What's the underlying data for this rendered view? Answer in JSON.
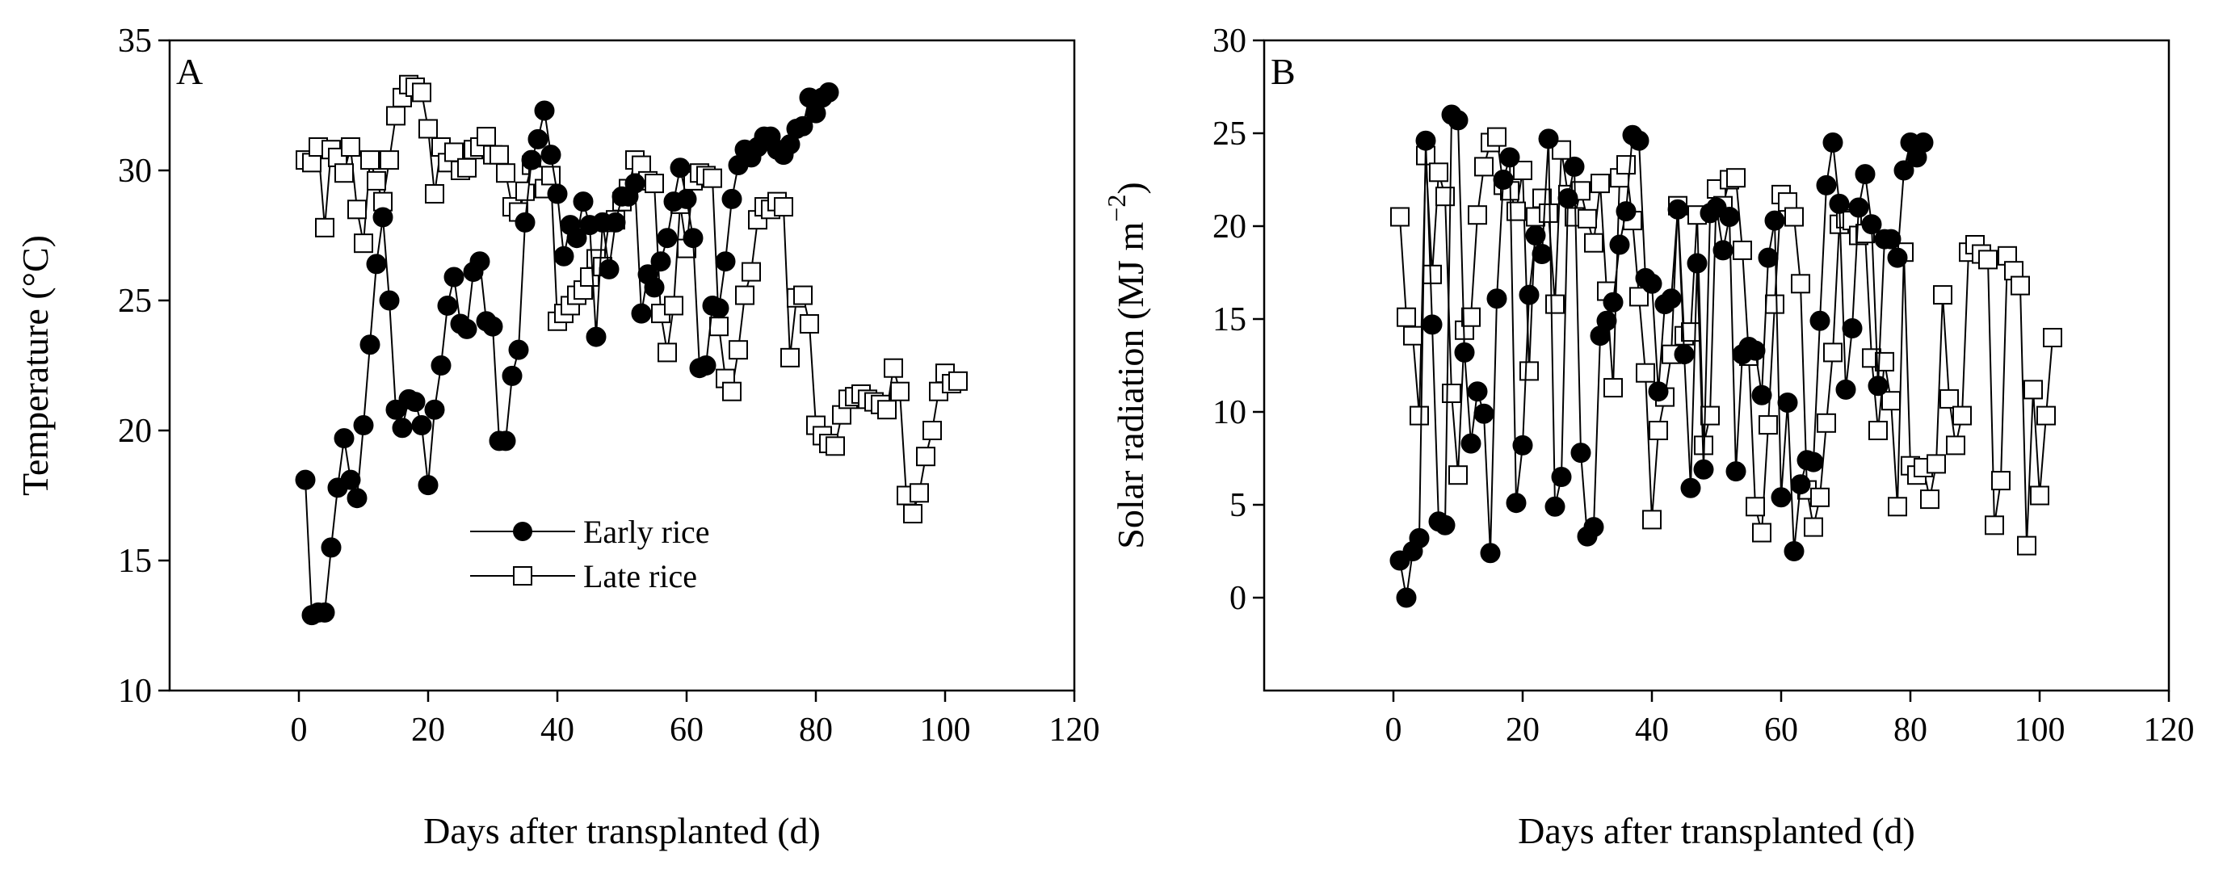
{
  "chart_data": [
    {
      "panel": "A",
      "type": "line",
      "xlabel": "Days after transplanted (d)",
      "ylabel_main": "Temperature (",
      "ylabel_unit": "°C",
      "ylabel_close": ")",
      "xlim": [
        -20,
        120
      ],
      "ylim": [
        10,
        35
      ],
      "xticks": [
        "0",
        "20",
        "40",
        "60",
        "80",
        "100",
        "120"
      ],
      "yticks": [
        "10",
        "15",
        "20",
        "25",
        "30",
        "35"
      ],
      "legend": [
        "Early rice",
        "Late rice"
      ],
      "series": [
        {
          "name": "Early rice",
          "marker": "filled-circle",
          "x": [
            1,
            2,
            3,
            4,
            5,
            6,
            7,
            8,
            9,
            10,
            11,
            12,
            13,
            14,
            15,
            16,
            17,
            18,
            19,
            20,
            21,
            22,
            23,
            24,
            25,
            26,
            27,
            28,
            29,
            30,
            31,
            32,
            33,
            34,
            35,
            36,
            37,
            38,
            39,
            40,
            41,
            42,
            43,
            44,
            45,
            46,
            47,
            48,
            49,
            50,
            51,
            52,
            53,
            54,
            55,
            56,
            57,
            58,
            59,
            60,
            61,
            62,
            63,
            64,
            65,
            66,
            67,
            68,
            69,
            70,
            71,
            72,
            73,
            74,
            75,
            76,
            77,
            78,
            79,
            80,
            81,
            82
          ],
          "y": [
            18.1,
            12.9,
            13.0,
            13.0,
            15.5,
            17.8,
            19.7,
            18.1,
            17.4,
            20.2,
            23.3,
            26.4,
            28.2,
            25.0,
            20.8,
            20.1,
            21.2,
            21.1,
            20.2,
            17.9,
            20.8,
            22.5,
            24.8,
            25.9,
            24.1,
            23.9,
            26.1,
            26.5,
            24.2,
            24.0,
            19.6,
            19.6,
            22.1,
            23.1,
            28.0,
            30.4,
            31.2,
            32.3,
            30.6,
            29.1,
            26.7,
            27.9,
            27.4,
            28.8,
            27.9,
            23.6,
            28.0,
            26.2,
            28.0,
            29.0,
            29.0,
            29.5,
            24.5,
            26.0,
            25.5,
            26.5,
            27.4,
            28.8,
            30.1,
            28.9,
            27.4,
            22.4,
            22.5,
            24.8,
            24.7,
            26.5,
            28.9,
            30.2,
            30.8,
            30.5,
            30.9,
            31.3,
            31.3,
            30.8,
            30.6,
            31.0,
            31.6,
            31.7,
            32.8,
            32.2,
            32.8,
            33.0
          ]
        },
        {
          "name": "Late rice",
          "marker": "open-square",
          "x": [
            1,
            2,
            3,
            4,
            5,
            6,
            7,
            8,
            9,
            10,
            11,
            12,
            13,
            14,
            15,
            16,
            17,
            18,
            19,
            20,
            21,
            22,
            23,
            24,
            25,
            26,
            27,
            28,
            29,
            30,
            31,
            32,
            33,
            34,
            35,
            36,
            37,
            38,
            39,
            40,
            41,
            42,
            43,
            44,
            45,
            46,
            47,
            48,
            49,
            50,
            51,
            52,
            53,
            54,
            55,
            56,
            57,
            58,
            59,
            60,
            61,
            62,
            63,
            64,
            65,
            66,
            67,
            68,
            69,
            70,
            71,
            72,
            73,
            74,
            75,
            76,
            77,
            78,
            79,
            80,
            81,
            82,
            83,
            84,
            85,
            86,
            87,
            88,
            89,
            90,
            91,
            92,
            93,
            94,
            95,
            96,
            97,
            98,
            99,
            100,
            101,
            102
          ],
          "y": [
            30.4,
            30.3,
            30.9,
            27.8,
            30.8,
            30.5,
            29.9,
            30.9,
            28.5,
            27.2,
            30.4,
            29.6,
            28.8,
            30.4,
            32.1,
            32.8,
            33.3,
            33.2,
            33.0,
            31.6,
            29.1,
            30.9,
            30.3,
            30.7,
            30.0,
            30.1,
            30.8,
            30.9,
            31.3,
            30.6,
            30.6,
            29.9,
            28.6,
            28.4,
            29.2,
            30.2,
            29.8,
            29.3,
            29.8,
            24.2,
            24.5,
            24.8,
            25.2,
            25.4,
            25.9,
            26.6,
            26.3,
            28.0,
            28.1,
            28.8,
            29.3,
            30.4,
            30.2,
            29.6,
            29.5,
            24.5,
            23.0,
            24.8,
            28.7,
            27.0,
            29.6,
            29.9,
            29.8,
            29.7,
            24.0,
            22.0,
            21.5,
            23.1,
            25.2,
            26.1,
            28.1,
            28.6,
            28.5,
            28.8,
            28.6,
            22.8,
            25.1,
            25.2,
            24.1,
            20.2,
            19.8,
            19.5,
            19.4,
            20.6,
            21.2,
            21.3,
            21.4,
            21.2,
            21.1,
            21.0,
            20.8,
            22.4,
            21.5,
            17.5,
            16.8,
            17.6,
            19.0,
            20.0,
            21.5,
            22.2,
            21.8,
            21.9
          ]
        }
      ]
    },
    {
      "panel": "B",
      "type": "line",
      "xlabel": "Days after transplanted (d)",
      "ylabel_main": "Solar radiation (MJ m",
      "ylabel_sup": "−2",
      "ylabel_close": ")",
      "xlim": [
        -20,
        120
      ],
      "ylim": [
        -5,
        30
      ],
      "xticks": [
        "0",
        "20",
        "40",
        "60",
        "80",
        "100",
        "120"
      ],
      "yticks": [
        "0",
        "5",
        "10",
        "15",
        "20",
        "25",
        "30"
      ],
      "series": [
        {
          "name": "Early rice",
          "marker": "filled-circle",
          "x": [
            1,
            2,
            3,
            4,
            5,
            6,
            7,
            8,
            9,
            10,
            11,
            12,
            13,
            14,
            15,
            16,
            17,
            18,
            19,
            20,
            21,
            22,
            23,
            24,
            25,
            26,
            27,
            28,
            29,
            30,
            31,
            32,
            33,
            34,
            35,
            36,
            37,
            38,
            39,
            40,
            41,
            42,
            43,
            44,
            45,
            46,
            47,
            48,
            49,
            50,
            51,
            52,
            53,
            54,
            55,
            56,
            57,
            58,
            59,
            60,
            61,
            62,
            63,
            64,
            65,
            66,
            67,
            68,
            69,
            70,
            71,
            72,
            73,
            74,
            75,
            76,
            77,
            78,
            79,
            80,
            81,
            82
          ],
          "y": [
            2.0,
            0.0,
            2.5,
            3.2,
            24.6,
            14.7,
            4.1,
            3.9,
            26.0,
            25.7,
            13.2,
            8.3,
            11.1,
            9.9,
            2.4,
            16.1,
            22.5,
            23.7,
            5.1,
            8.2,
            16.3,
            19.5,
            18.5,
            24.7,
            4.9,
            6.5,
            21.5,
            23.2,
            7.8,
            3.3,
            3.8,
            14.1,
            14.9,
            15.9,
            19.0,
            20.8,
            24.9,
            24.6,
            17.2,
            16.9,
            11.1,
            15.8,
            16.1,
            20.9,
            13.1,
            5.9,
            18.0,
            6.9,
            20.7,
            21.0,
            18.7,
            20.5,
            6.8,
            13.1,
            13.5,
            13.3,
            10.9,
            18.3,
            20.3,
            5.4,
            10.5,
            2.5,
            6.1,
            7.4,
            7.3,
            14.9,
            22.2,
            24.5,
            21.2,
            11.2,
            14.5,
            21.0,
            22.8,
            20.1,
            11.4,
            19.3,
            19.3,
            18.3,
            23.0,
            24.5,
            23.7,
            24.5
          ]
        },
        {
          "name": "Late rice",
          "marker": "open-square",
          "x": [
            1,
            2,
            3,
            4,
            5,
            6,
            7,
            8,
            9,
            10,
            11,
            12,
            13,
            14,
            15,
            16,
            17,
            18,
            19,
            20,
            21,
            22,
            23,
            24,
            25,
            26,
            27,
            28,
            29,
            30,
            31,
            32,
            33,
            34,
            35,
            36,
            37,
            38,
            39,
            40,
            41,
            42,
            43,
            44,
            45,
            46,
            47,
            48,
            49,
            50,
            51,
            52,
            53,
            54,
            55,
            56,
            57,
            58,
            59,
            60,
            61,
            62,
            63,
            64,
            65,
            66,
            67,
            68,
            69,
            70,
            71,
            72,
            73,
            74,
            75,
            76,
            77,
            78,
            79,
            80,
            81,
            82,
            83,
            84,
            85,
            86,
            87,
            88,
            89,
            90,
            91,
            92,
            93,
            94,
            95,
            96,
            97,
            98,
            99,
            100,
            101,
            102
          ],
          "y": [
            20.5,
            15.1,
            14.1,
            9.8,
            23.8,
            17.4,
            22.9,
            21.6,
            11.0,
            6.6,
            14.4,
            15.1,
            20.6,
            23.2,
            24.5,
            24.8,
            22.2,
            21.9,
            20.8,
            23.0,
            12.2,
            20.5,
            21.5,
            20.7,
            15.8,
            24.1,
            21.7,
            20.5,
            21.9,
            20.4,
            19.1,
            22.3,
            16.5,
            11.3,
            22.6,
            23.3,
            20.3,
            16.2,
            12.1,
            4.2,
            9.0,
            10.8,
            13.1,
            21.1,
            14.1,
            14.3,
            20.6,
            8.2,
            9.8,
            22.0,
            21.1,
            22.5,
            22.6,
            18.7,
            13.0,
            4.9,
            3.5,
            9.3,
            15.8,
            21.7,
            21.3,
            20.5,
            16.9,
            5.8,
            3.8,
            5.4,
            9.4,
            13.2,
            20.1,
            20.4,
            20.3,
            19.5,
            19.6,
            12.9,
            9.0,
            12.7,
            10.6,
            4.9,
            18.6,
            7.1,
            6.6,
            7.0,
            5.3,
            7.2,
            16.3,
            10.7,
            8.2,
            9.8,
            18.6,
            19.0,
            18.5,
            18.2,
            3.9,
            6.3,
            18.4,
            17.6,
            16.8,
            2.8,
            11.2,
            5.5,
            9.8,
            14.0
          ]
        }
      ]
    }
  ]
}
